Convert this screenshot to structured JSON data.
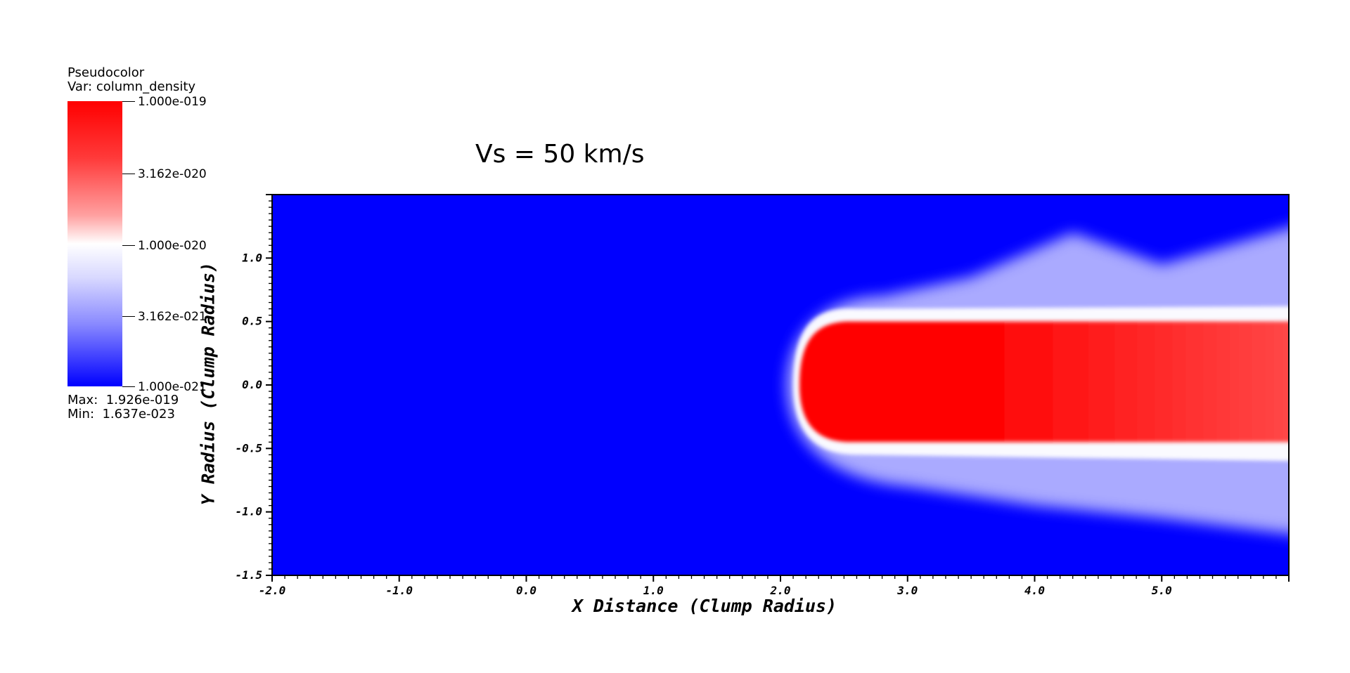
{
  "chart_data": {
    "type": "heatmap",
    "title": "Vs = 50 km/s",
    "xlabel": "X Distance (Clump Radius)",
    "ylabel": "Y Radius (Clump Radius)",
    "xlim": [
      -2.0,
      6.0
    ],
    "ylim": [
      -1.5,
      1.5
    ],
    "x_ticks": [
      "-2.0",
      "-1.0",
      "0.0",
      "1.0",
      "2.0",
      "3.0",
      "4.0",
      "5.0"
    ],
    "y_ticks": [
      "-1.5",
      "-1.0",
      "-0.5",
      "0.0",
      "0.5",
      "1.0"
    ],
    "grid": false,
    "colorbar": {
      "header": "Pseudocolor",
      "variable": "Var: column_density",
      "scale": "log",
      "range": [
        1e-21,
        1e-19
      ],
      "ticks": [
        {
          "value": 1e-19,
          "label": "1.000e-019"
        },
        {
          "value": 3.162e-20,
          "label": "3.162e-020"
        },
        {
          "value": 1e-20,
          "label": "1.000e-020"
        },
        {
          "value": 3.162e-21,
          "label": "3.162e-021"
        },
        {
          "value": 1e-21,
          "label": "1.000e-021"
        }
      ],
      "max_text": "Max:  1.926e-019",
      "min_text": "Min:  1.637e-023",
      "placement": "left",
      "colors": [
        "#0000ff",
        "#ffffff",
        "#ff0000"
      ]
    },
    "features": {
      "dense_core": {
        "x_start": 2.15,
        "x_end": 6.0,
        "y_min": -0.45,
        "y_max": 0.5,
        "level": "high"
      },
      "diffuse_envelope": {
        "x_start": 2.05,
        "x_end": 6.0,
        "y_min": -1.2,
        "y_max": 1.3,
        "level": "medium"
      },
      "background_level": "low"
    }
  },
  "colors": {
    "background_field": "#0000ff",
    "dense": "#ff0000",
    "mid": "#ffffff",
    "frame": "#000000"
  }
}
